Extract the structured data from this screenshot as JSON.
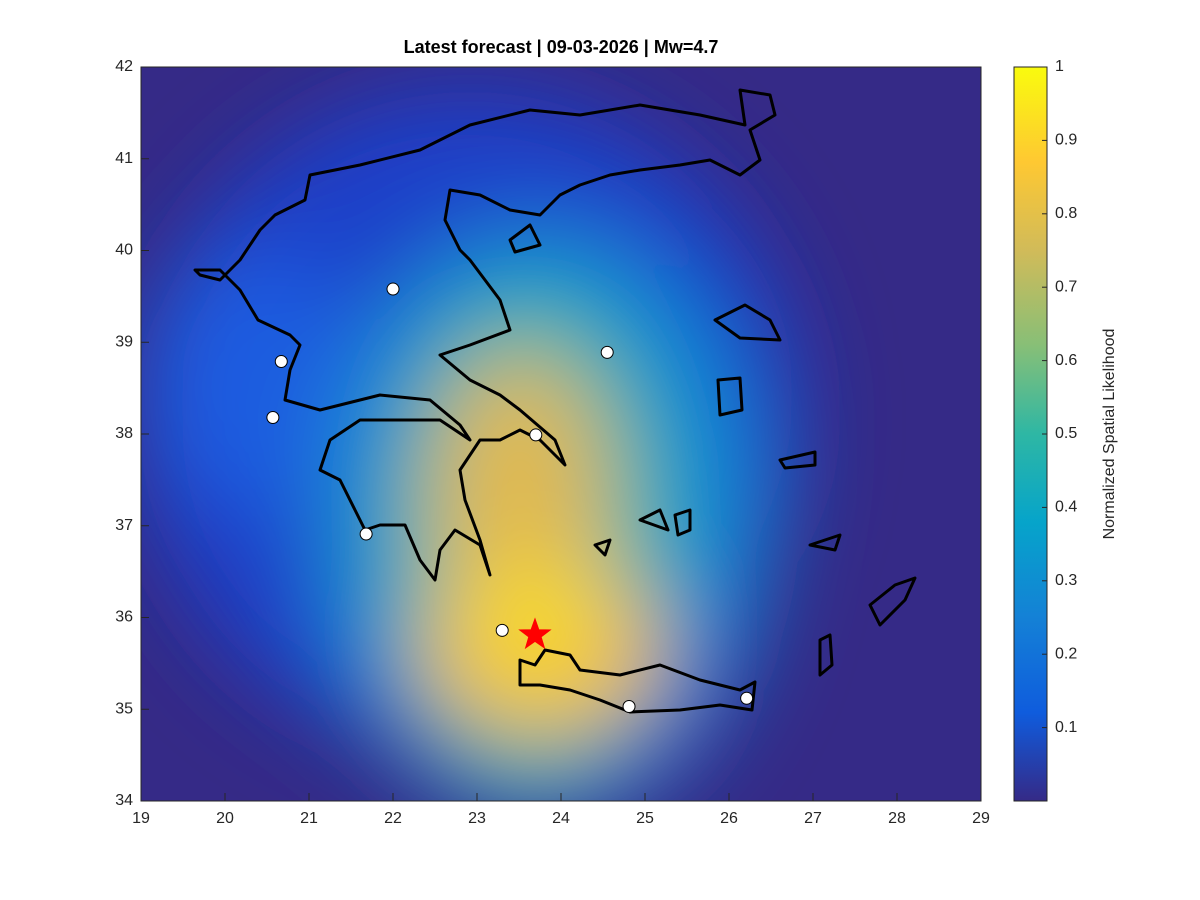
{
  "chart_data": {
    "type": "map",
    "title": "Latest forecast | 09-03-2026 | Mw=4.7",
    "xlim": [
      19,
      29
    ],
    "ylim": [
      34,
      42
    ],
    "xticks": [
      19,
      20,
      21,
      22,
      23,
      24,
      25,
      26,
      27,
      28,
      29
    ],
    "yticks": [
      34,
      35,
      36,
      37,
      38,
      39,
      40,
      41,
      42
    ],
    "points": {
      "color": "#ffffff",
      "x": [
        22.0,
        20.67,
        20.57,
        21.68,
        23.3,
        24.81,
        26.21,
        24.55,
        23.7
      ],
      "y": [
        39.58,
        38.79,
        38.18,
        36.91,
        35.86,
        35.03,
        35.12,
        38.89,
        37.99
      ]
    },
    "epicenter": {
      "color": "#ff0000",
      "x": 23.69,
      "y": 35.81
    },
    "colorbar": {
      "label": "Normalized Spatial Likelihood",
      "lim": [
        0,
        1
      ],
      "ticks": [
        0.1,
        0.2,
        0.3,
        0.4,
        0.5,
        0.6,
        0.7,
        0.8,
        0.9,
        1
      ]
    }
  }
}
